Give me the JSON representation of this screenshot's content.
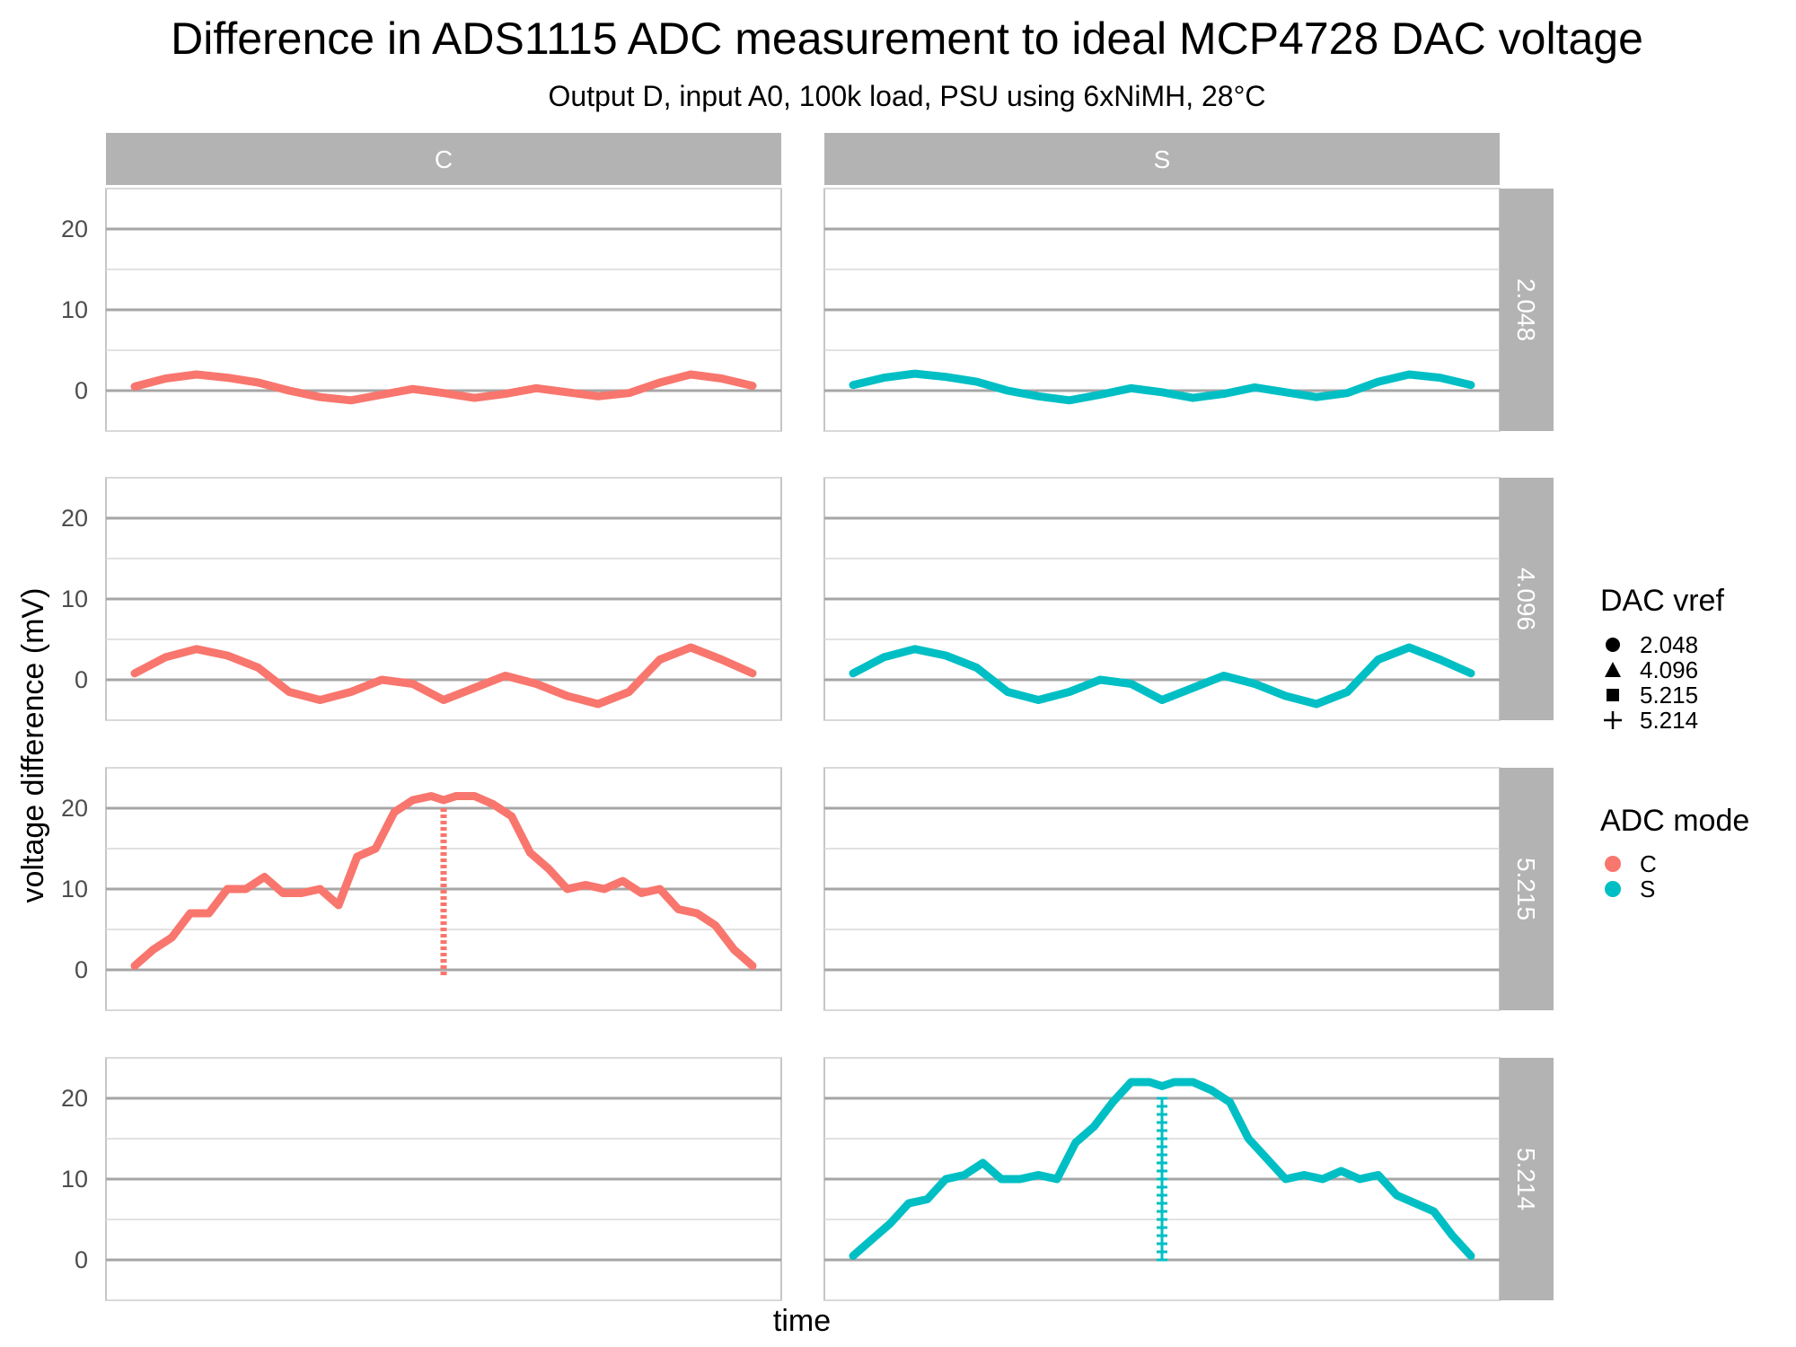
{
  "chart_data": {
    "type": "line",
    "title": "Difference in ADS1115 ADC measurement to ideal MCP4728 DAC voltage",
    "subtitle": "Output D, input A0, 100k load, PSU using 6xNiMH, 28°C",
    "xlabel": "time",
    "ylabel": "voltage difference (mV)",
    "ylim": [
      -5,
      25
    ],
    "y_ticks": [
      0,
      10,
      20
    ],
    "grid": true,
    "facet_columns": [
      "C",
      "S"
    ],
    "facet_rows": [
      "2.048",
      "4.096",
      "5.215",
      "5.214"
    ],
    "legends": [
      {
        "title": "DAC vref",
        "entries": [
          {
            "label": "2.048",
            "shape": "circle"
          },
          {
            "label": "4.096",
            "shape": "triangle"
          },
          {
            "label": "5.215",
            "shape": "square"
          },
          {
            "label": "5.214",
            "shape": "plus"
          }
        ]
      },
      {
        "title": "ADC mode",
        "entries": [
          {
            "label": "C",
            "color": "#F8766D"
          },
          {
            "label": "S",
            "color": "#00BFC4"
          }
        ]
      }
    ],
    "series": [
      {
        "adc_mode": "C",
        "dac_vref": "2.048",
        "time": [
          0,
          5,
          10,
          15,
          20,
          25,
          30,
          35,
          40,
          45,
          50,
          55,
          60,
          65,
          70,
          75,
          80,
          85,
          90,
          95,
          100
        ],
        "values": [
          0.5,
          1.5,
          2.0,
          1.6,
          1.0,
          0.0,
          -0.8,
          -1.2,
          -0.5,
          0.2,
          -0.3,
          -0.9,
          -0.4,
          0.3,
          -0.2,
          -0.7,
          -0.3,
          1.0,
          2.0,
          1.5,
          0.6
        ]
      },
      {
        "adc_mode": "S",
        "dac_vref": "2.048",
        "time": [
          0,
          5,
          10,
          15,
          20,
          25,
          30,
          35,
          40,
          45,
          50,
          55,
          60,
          65,
          70,
          75,
          80,
          85,
          90,
          95,
          100
        ],
        "values": [
          0.7,
          1.6,
          2.1,
          1.7,
          1.1,
          0.0,
          -0.7,
          -1.2,
          -0.5,
          0.3,
          -0.2,
          -0.9,
          -0.4,
          0.4,
          -0.2,
          -0.8,
          -0.3,
          1.1,
          2.0,
          1.6,
          0.7
        ]
      },
      {
        "adc_mode": "C",
        "dac_vref": "4.096",
        "time": [
          0,
          5,
          10,
          15,
          20,
          25,
          30,
          35,
          40,
          45,
          50,
          55,
          60,
          65,
          70,
          75,
          80,
          85,
          90,
          95,
          100
        ],
        "values": [
          0.8,
          2.8,
          3.8,
          3.0,
          1.5,
          -1.5,
          -2.5,
          -1.5,
          0.0,
          -0.5,
          -2.5,
          -1.0,
          0.5,
          -0.5,
          -2.0,
          -3.0,
          -1.5,
          2.5,
          4.0,
          2.5,
          0.8
        ]
      },
      {
        "adc_mode": "S",
        "dac_vref": "4.096",
        "time": [
          0,
          5,
          10,
          15,
          20,
          25,
          30,
          35,
          40,
          45,
          50,
          55,
          60,
          65,
          70,
          75,
          80,
          85,
          90,
          95,
          100
        ],
        "values": [
          0.8,
          2.8,
          3.8,
          3.0,
          1.5,
          -1.5,
          -2.5,
          -1.5,
          0.0,
          -0.5,
          -2.5,
          -1.0,
          0.5,
          -0.5,
          -2.0,
          -3.0,
          -1.5,
          2.5,
          4.0,
          2.5,
          0.8
        ]
      },
      {
        "adc_mode": "C",
        "dac_vref": "5.215",
        "time": [
          0,
          3,
          6,
          9,
          12,
          15,
          18,
          21,
          24,
          27,
          30,
          33,
          36,
          39,
          42,
          45,
          48,
          50,
          52,
          55,
          58,
          61,
          64,
          67,
          70,
          73,
          76,
          79,
          82,
          85,
          88,
          91,
          94,
          97,
          100
        ],
        "values": [
          0.5,
          2.5,
          4.0,
          7.0,
          7.0,
          10.0,
          10.0,
          11.5,
          9.5,
          9.5,
          10.0,
          8.0,
          14.0,
          15.0,
          19.5,
          21.0,
          21.5,
          21.0,
          21.5,
          21.5,
          20.5,
          19.0,
          14.5,
          12.5,
          10.0,
          10.5,
          10.0,
          11.0,
          9.5,
          10.0,
          7.5,
          7.0,
          5.5,
          2.5,
          0.5
        ]
      },
      {
        "adc_mode": "S",
        "dac_vref": "5.214",
        "time": [
          0,
          3,
          6,
          9,
          12,
          15,
          18,
          21,
          24,
          27,
          30,
          33,
          36,
          39,
          42,
          45,
          48,
          50,
          52,
          55,
          58,
          61,
          64,
          67,
          70,
          73,
          76,
          79,
          82,
          85,
          88,
          91,
          94,
          97,
          100
        ],
        "values": [
          0.5,
          2.5,
          4.5,
          7.0,
          7.5,
          10.0,
          10.5,
          12.0,
          10.0,
          10.0,
          10.5,
          10.0,
          14.5,
          16.5,
          19.5,
          22.0,
          22.0,
          21.5,
          22.0,
          22.0,
          21.0,
          19.5,
          15.0,
          12.5,
          10.0,
          10.5,
          10.0,
          11.0,
          10.0,
          10.5,
          8.0,
          7.0,
          6.0,
          3.0,
          0.5
        ]
      }
    ],
    "vertical_markers": [
      {
        "adc_mode": "C",
        "dac_vref": "5.215",
        "time": 50,
        "y_range": [
          -1,
          20
        ],
        "style": "dotted"
      },
      {
        "adc_mode": "S",
        "dac_vref": "5.214",
        "time": 50,
        "y_range": [
          0,
          20
        ],
        "style": "plus"
      }
    ]
  }
}
